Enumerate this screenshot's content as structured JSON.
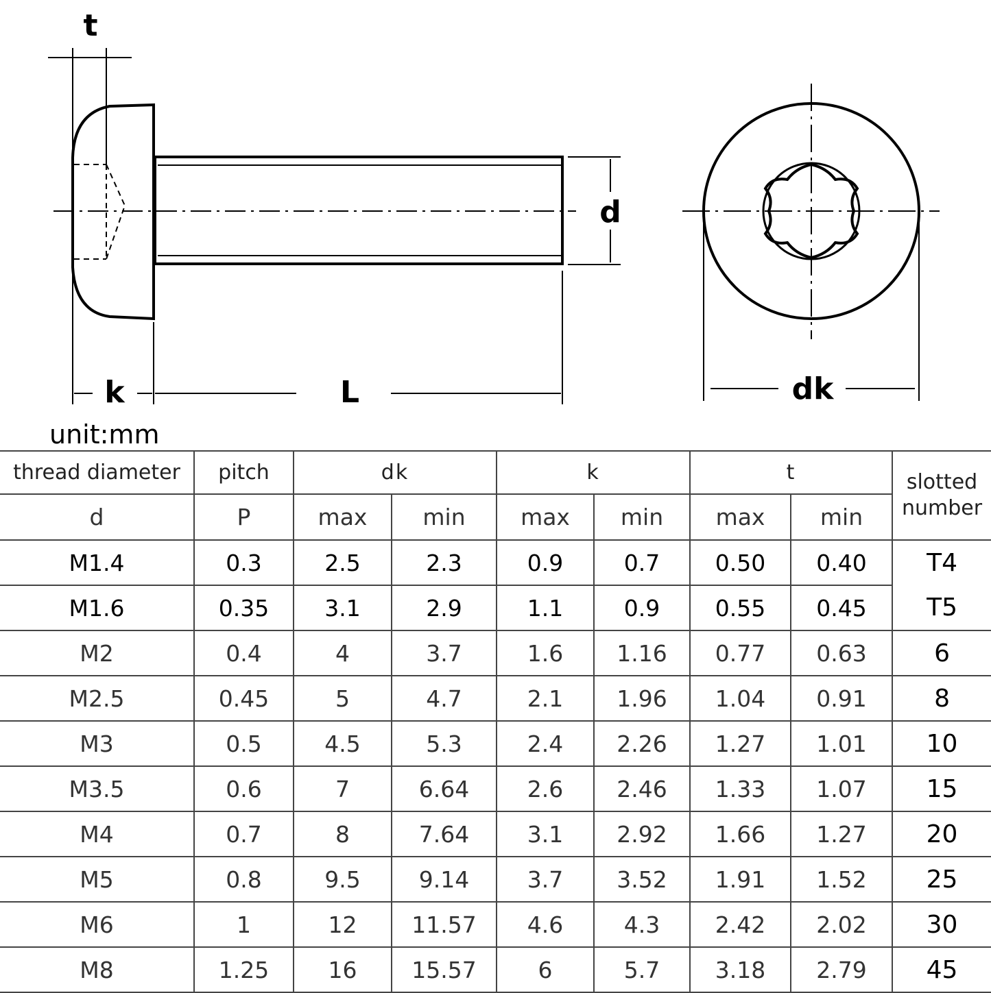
{
  "drawing": {
    "labels": {
      "t": "t",
      "d": "d",
      "k": "k",
      "L": "L",
      "dk": "dk"
    },
    "unit": "unit:mm"
  },
  "table": {
    "headers": {
      "thread_diameter": "thread diameter",
      "pitch": "pitch",
      "dk": "dk",
      "k": "k",
      "t": "t",
      "slotted": "slotted number",
      "d": "d",
      "P": "P",
      "max": "max",
      "min": "min"
    },
    "rows": [
      {
        "d": "M1.4",
        "p": "0.3",
        "dk_max": "2.5",
        "dk_min": "2.3",
        "k_max": "0.9",
        "k_min": "0.7",
        "t_max": "0.50",
        "t_min": "0.40",
        "slot": "T4"
      },
      {
        "d": "M1.6",
        "p": "0.35",
        "dk_max": "3.1",
        "dk_min": "2.9",
        "k_max": "1.1",
        "k_min": "0.9",
        "t_max": "0.55",
        "t_min": "0.45",
        "slot": "T5"
      },
      {
        "d": "M2",
        "p": "0.4",
        "dk_max": "4",
        "dk_min": "3.7",
        "k_max": "1.6",
        "k_min": "1.16",
        "t_max": "0.77",
        "t_min": "0.63",
        "slot": "6"
      },
      {
        "d": "M2.5",
        "p": "0.45",
        "dk_max": "5",
        "dk_min": "4.7",
        "k_max": "2.1",
        "k_min": "1.96",
        "t_max": "1.04",
        "t_min": "0.91",
        "slot": "8"
      },
      {
        "d": "M3",
        "p": "0.5",
        "dk_max": "4.5",
        "dk_min": "5.3",
        "k_max": "2.4",
        "k_min": "2.26",
        "t_max": "1.27",
        "t_min": "1.01",
        "slot": "10"
      },
      {
        "d": "M3.5",
        "p": "0.6",
        "dk_max": "7",
        "dk_min": "6.64",
        "k_max": "2.6",
        "k_min": "2.46",
        "t_max": "1.33",
        "t_min": "1.07",
        "slot": "15"
      },
      {
        "d": "M4",
        "p": "0.7",
        "dk_max": "8",
        "dk_min": "7.64",
        "k_max": "3.1",
        "k_min": "2.92",
        "t_max": "1.66",
        "t_min": "1.27",
        "slot": "20"
      },
      {
        "d": "M5",
        "p": "0.8",
        "dk_max": "9.5",
        "dk_min": "9.14",
        "k_max": "3.7",
        "k_min": "3.52",
        "t_max": "1.91",
        "t_min": "1.52",
        "slot": "25"
      },
      {
        "d": "M6",
        "p": "1",
        "dk_max": "12",
        "dk_min": "11.57",
        "k_max": "4.6",
        "k_min": "4.3",
        "t_max": "2.42",
        "t_min": "2.02",
        "slot": "30"
      },
      {
        "d": "M8",
        "p": "1.25",
        "dk_max": "16",
        "dk_min": "15.57",
        "k_max": "6",
        "k_min": "5.7",
        "t_max": "3.18",
        "t_min": "2.79",
        "slot": "45"
      }
    ]
  }
}
